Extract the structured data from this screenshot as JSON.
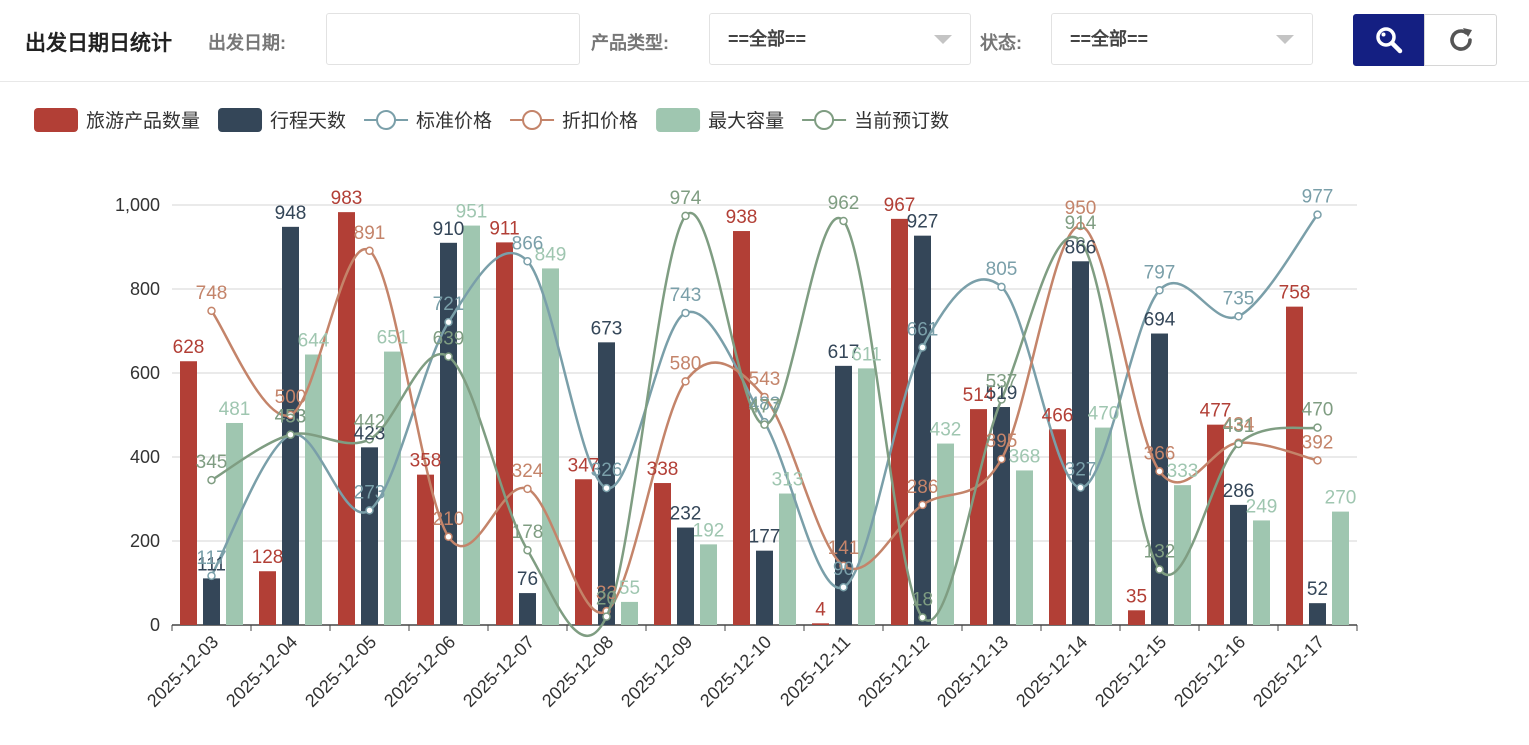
{
  "header": {
    "title": "出发日期日统计",
    "date_label": "出发日期:",
    "date_value": "",
    "type_label": "产品类型:",
    "type_value": "==全部==",
    "status_label": "状态:",
    "status_value": "==全部==",
    "search_icon": "search-icon",
    "reset_icon": "refresh-icon"
  },
  "colors": {
    "s0": "#b23f36",
    "s1": "#344658",
    "s2": "#7a9fa9",
    "s3": "#c4846a",
    "s4": "#9fc6b0",
    "s5": "#7f9d82",
    "search_btn": "#141f82"
  },
  "chart_data": {
    "type": "bar",
    "categories": [
      "2025-12-03",
      "2025-12-04",
      "2025-12-05",
      "2025-12-06",
      "2025-12-07",
      "2025-12-08",
      "2025-12-09",
      "2025-12-10",
      "2025-12-11",
      "2025-12-12",
      "2025-12-13",
      "2025-12-14",
      "2025-12-15",
      "2025-12-16",
      "2025-12-17"
    ],
    "ylim": [
      0,
      1000
    ],
    "yticks": [
      0,
      200,
      400,
      600,
      800,
      1000
    ],
    "ytick_labels": [
      "0",
      "200",
      "400",
      "600",
      "800",
      "1,000"
    ],
    "grid": true,
    "legend_position": "top-left",
    "series": [
      {
        "name": "旅游产品数量",
        "kind": "bar",
        "values": [
          628,
          128,
          983,
          358,
          911,
          347,
          338,
          938,
          4,
          967,
          514,
          466,
          35,
          477,
          758
        ]
      },
      {
        "name": "行程天数",
        "kind": "bar",
        "values": [
          111,
          948,
          423,
          910,
          76,
          673,
          232,
          177,
          617,
          927,
          519,
          866,
          694,
          286,
          52
        ]
      },
      {
        "name": "标准价格",
        "kind": "line",
        "values": [
          117,
          453,
          273,
          721,
          866,
          326,
          743,
          483,
          90,
          661,
          805,
          327,
          797,
          735,
          977
        ]
      },
      {
        "name": "折扣价格",
        "kind": "line",
        "values": [
          748,
          500,
          891,
          210,
          324,
          33,
          580,
          543,
          141,
          286,
          395,
          950,
          366,
          434,
          392
        ]
      },
      {
        "name": "最大容量",
        "kind": "bar",
        "values": [
          481,
          644,
          651,
          951,
          849,
          55,
          192,
          313,
          611,
          432,
          368,
          470,
          333,
          249,
          270
        ]
      },
      {
        "name": "当前预订数",
        "kind": "line",
        "values": [
          345,
          453,
          442,
          639,
          178,
          20,
          974,
          477,
          962,
          18,
          537,
          914,
          132,
          431,
          470
        ]
      }
    ]
  }
}
